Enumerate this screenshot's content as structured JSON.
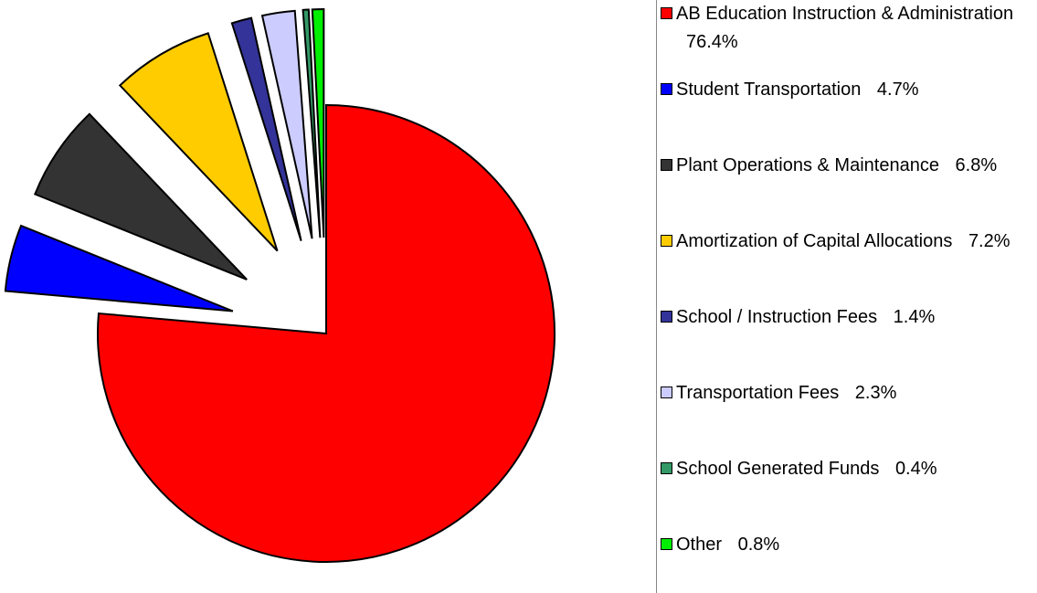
{
  "chart_data": {
    "type": "pie",
    "categories": [
      "AB Education Instruction & Administration",
      "Student Transportation",
      "Plant Operations & Maintenance",
      "Amortization of Capital Allocations",
      "School / Instruction Fees",
      "Transportation Fees",
      "School Generated Funds",
      "Other"
    ],
    "values": [
      76.4,
      4.7,
      6.8,
      7.2,
      1.4,
      2.3,
      0.4,
      0.8
    ],
    "value_labels": [
      "76.4%",
      "4.7%",
      "6.8%",
      "7.2%",
      "1.4%",
      "2.3%",
      "0.4%",
      "0.8%"
    ],
    "colors": [
      "#ff0000",
      "#0000ff",
      "#333333",
      "#ffcc00",
      "#333399",
      "#ccccff",
      "#339966",
      "#00ee00"
    ],
    "legend": "right"
  }
}
